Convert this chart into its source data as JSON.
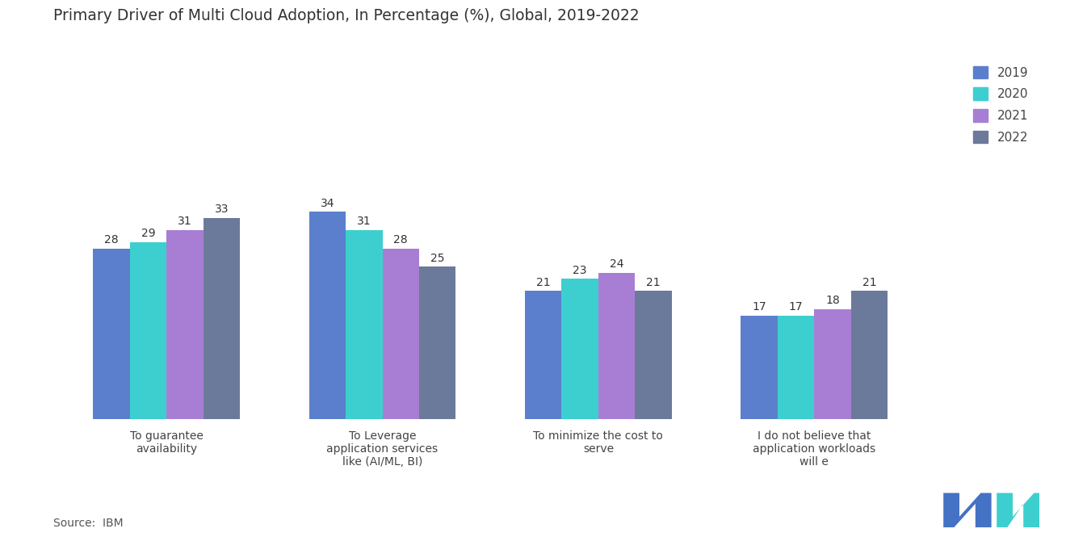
{
  "title": "Primary Driver of Multi Cloud Adoption, In Percentage (%), Global, 2019-2022",
  "categories": [
    "To guarantee\navailability",
    "To Leverage\napplication services\nlike (AI/ML, BI)",
    "To minimize the cost to\nserve",
    "I do not believe that\napplication workloads\nwill e"
  ],
  "years": [
    "2019",
    "2020",
    "2021",
    "2022"
  ],
  "values": {
    "2019": [
      28,
      34,
      21,
      17
    ],
    "2020": [
      29,
      31,
      23,
      17
    ],
    "2021": [
      31,
      28,
      24,
      18
    ],
    "2022": [
      33,
      25,
      21,
      21
    ]
  },
  "colors": {
    "2019": "#5B7FCC",
    "2020": "#3DCFCF",
    "2021": "#A87ED4",
    "2022": "#6B7A9A"
  },
  "source": "IBM",
  "background_color": "#FFFFFF",
  "ylim": [
    0,
    60
  ],
  "bar_width": 0.17,
  "title_fontsize": 13.5,
  "tick_fontsize": 10,
  "legend_fontsize": 11,
  "value_fontsize": 10
}
